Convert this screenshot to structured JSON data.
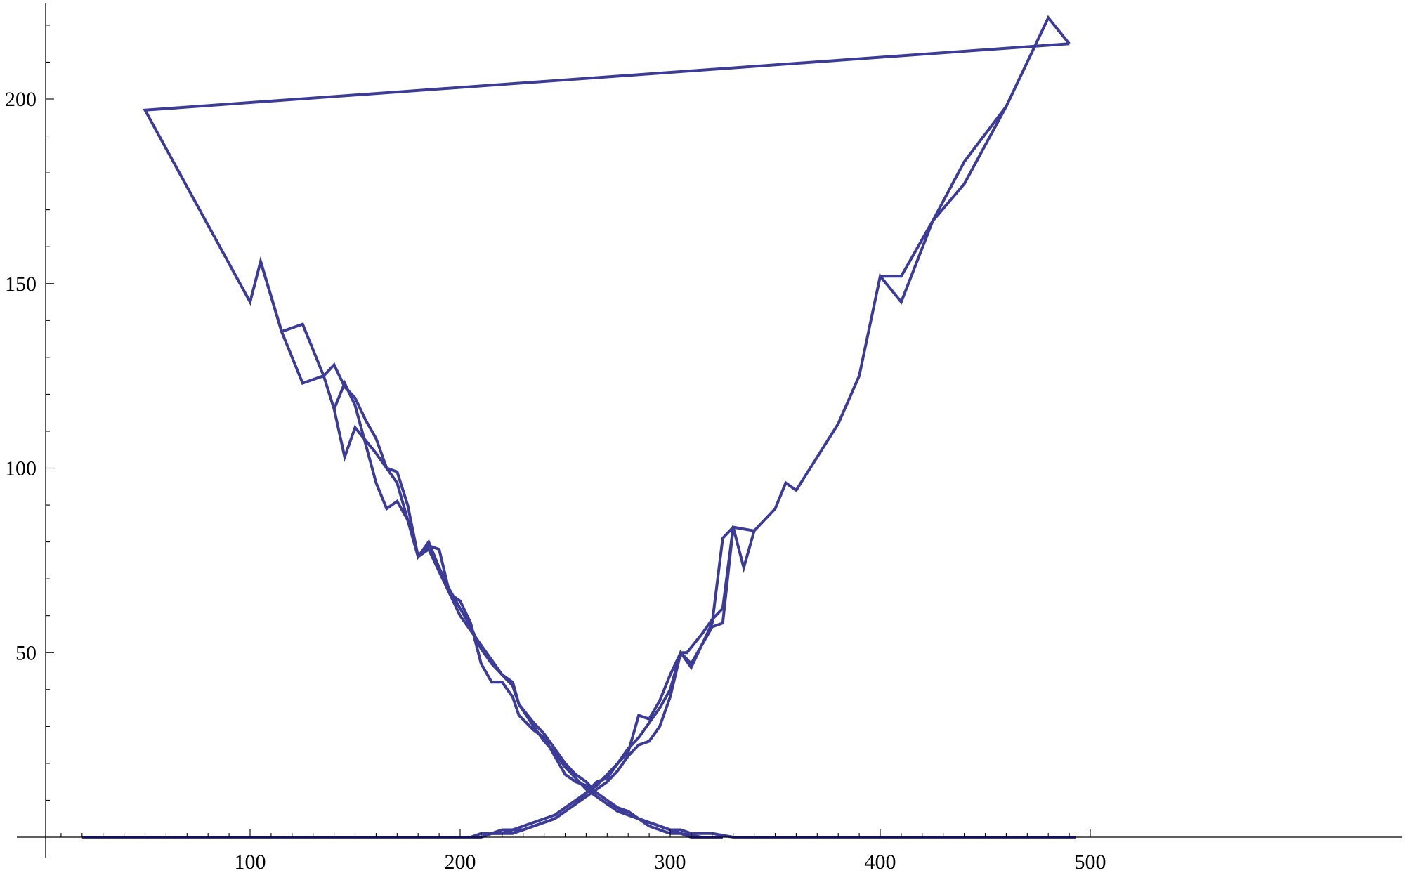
{
  "chart_data": {
    "type": "line",
    "title": "",
    "xlabel": "",
    "ylabel": "",
    "xlim": [
      0,
      500
    ],
    "ylim": [
      0,
      225
    ],
    "x_major_ticks": [
      100,
      200,
      300,
      400,
      500
    ],
    "x_minor_step": 10,
    "y_major_ticks": [
      50,
      100,
      150,
      200
    ],
    "y_minor_step": 10,
    "grid": false,
    "legend": "none",
    "line_color": "#3c3c96",
    "series": [
      {
        "points": [
          [
            20,
            0
          ],
          [
            200,
            0
          ],
          [
            205,
            0
          ],
          [
            210,
            1
          ],
          [
            215,
            1
          ],
          [
            220,
            2
          ],
          [
            225,
            2
          ],
          [
            230,
            3
          ],
          [
            235,
            4
          ],
          [
            240,
            5
          ],
          [
            245,
            6
          ],
          [
            250,
            8
          ],
          [
            255,
            10
          ],
          [
            260,
            12
          ],
          [
            265,
            14
          ],
          [
            270,
            17
          ],
          [
            275,
            20
          ],
          [
            280,
            24
          ],
          [
            285,
            27
          ],
          [
            290,
            31
          ],
          [
            295,
            35
          ],
          [
            300,
            40
          ],
          [
            305,
            50
          ],
          [
            310,
            46
          ],
          [
            315,
            52
          ],
          [
            320,
            57
          ],
          [
            325,
            58
          ],
          [
            330,
            84
          ],
          [
            335,
            73
          ],
          [
            340,
            83
          ],
          [
            350,
            89
          ],
          [
            355,
            96
          ],
          [
            360,
            94
          ],
          [
            380,
            112
          ],
          [
            390,
            125
          ],
          [
            400,
            152
          ],
          [
            410,
            145
          ],
          [
            425,
            167
          ],
          [
            440,
            177
          ],
          [
            460,
            198
          ],
          [
            480,
            222
          ],
          [
            490,
            215
          ]
        ]
      },
      {
        "points": [
          [
            490,
            215
          ],
          [
            50,
            197
          ],
          [
            100,
            145
          ],
          [
            105,
            156
          ],
          [
            115,
            137
          ],
          [
            125,
            123
          ],
          [
            135,
            125
          ],
          [
            140,
            116
          ],
          [
            145,
            103
          ],
          [
            150,
            111
          ],
          [
            160,
            104
          ],
          [
            170,
            96
          ],
          [
            175,
            86
          ],
          [
            180,
            76
          ],
          [
            185,
            78
          ],
          [
            190,
            72
          ],
          [
            195,
            66
          ],
          [
            200,
            64
          ],
          [
            205,
            58
          ],
          [
            210,
            47
          ],
          [
            215,
            42
          ],
          [
            220,
            42
          ],
          [
            225,
            38
          ],
          [
            228,
            33
          ],
          [
            235,
            29
          ],
          [
            240,
            27
          ],
          [
            245,
            22
          ],
          [
            250,
            17
          ],
          [
            255,
            15
          ],
          [
            260,
            14
          ],
          [
            265,
            11
          ],
          [
            270,
            9
          ],
          [
            275,
            7
          ],
          [
            280,
            6
          ],
          [
            285,
            5
          ],
          [
            290,
            4
          ],
          [
            295,
            3
          ],
          [
            300,
            2
          ],
          [
            305,
            2
          ],
          [
            310,
            1
          ],
          [
            320,
            1
          ],
          [
            330,
            0
          ],
          [
            493,
            0
          ]
        ]
      },
      {
        "points": [
          [
            105,
            156
          ],
          [
            115,
            137
          ],
          [
            125,
            139
          ],
          [
            135,
            125
          ],
          [
            140,
            128
          ],
          [
            145,
            122
          ],
          [
            150,
            119
          ],
          [
            155,
            113
          ],
          [
            160,
            108
          ],
          [
            165,
            100
          ],
          [
            170,
            99
          ],
          [
            175,
            90
          ],
          [
            180,
            76
          ],
          [
            185,
            80
          ],
          [
            190,
            73
          ],
          [
            195,
            67
          ],
          [
            200,
            62
          ],
          [
            205,
            57
          ],
          [
            210,
            51
          ],
          [
            215,
            47
          ],
          [
            220,
            44
          ],
          [
            225,
            41
          ],
          [
            228,
            36
          ],
          [
            235,
            31
          ],
          [
            240,
            28
          ],
          [
            245,
            24
          ],
          [
            250,
            20
          ],
          [
            255,
            17
          ],
          [
            260,
            15
          ],
          [
            265,
            12
          ],
          [
            270,
            10
          ],
          [
            275,
            8
          ],
          [
            280,
            7
          ],
          [
            285,
            5
          ],
          [
            290,
            4
          ],
          [
            295,
            3
          ],
          [
            300,
            2
          ],
          [
            305,
            1
          ],
          [
            310,
            0
          ],
          [
            325,
            0
          ]
        ]
      },
      {
        "points": [
          [
            140,
            116
          ],
          [
            145,
            123
          ],
          [
            150,
            117
          ],
          [
            160,
            96
          ],
          [
            165,
            89
          ],
          [
            170,
            91
          ],
          [
            175,
            86
          ],
          [
            180,
            76
          ],
          [
            185,
            79
          ],
          [
            190,
            78
          ],
          [
            195,
            66
          ],
          [
            200,
            60
          ],
          [
            205,
            56
          ],
          [
            210,
            52
          ],
          [
            215,
            48
          ],
          [
            220,
            44
          ],
          [
            225,
            42
          ],
          [
            228,
            36
          ],
          [
            235,
            30
          ],
          [
            240,
            26
          ],
          [
            245,
            23
          ],
          [
            250,
            19
          ],
          [
            255,
            16
          ],
          [
            260,
            13
          ],
          [
            265,
            11
          ],
          [
            270,
            9
          ],
          [
            275,
            8
          ],
          [
            280,
            6
          ],
          [
            285,
            5
          ],
          [
            290,
            3
          ],
          [
            295,
            2
          ],
          [
            300,
            1
          ],
          [
            305,
            1
          ],
          [
            315,
            0
          ],
          [
            325,
            0
          ]
        ]
      },
      {
        "points": [
          [
            205,
            0
          ],
          [
            210,
            0
          ],
          [
            215,
            1
          ],
          [
            220,
            1
          ],
          [
            225,
            1
          ],
          [
            230,
            2
          ],
          [
            235,
            3
          ],
          [
            240,
            4
          ],
          [
            245,
            5
          ],
          [
            250,
            7
          ],
          [
            255,
            9
          ],
          [
            260,
            11
          ],
          [
            265,
            13
          ],
          [
            270,
            15
          ],
          [
            275,
            18
          ],
          [
            280,
            22
          ],
          [
            285,
            25
          ],
          [
            290,
            26
          ],
          [
            295,
            30
          ],
          [
            300,
            38
          ],
          [
            305,
            50
          ],
          [
            308,
            50
          ],
          [
            315,
            55
          ],
          [
            320,
            59
          ],
          [
            325,
            62
          ],
          [
            330,
            84
          ],
          [
            340,
            83
          ]
        ]
      },
      {
        "points": [
          [
            210,
            1
          ],
          [
            220,
            1
          ],
          [
            225,
            2
          ],
          [
            230,
            2
          ],
          [
            235,
            3
          ],
          [
            240,
            4
          ],
          [
            245,
            5
          ],
          [
            250,
            7
          ],
          [
            255,
            9
          ],
          [
            260,
            12
          ],
          [
            265,
            15
          ],
          [
            270,
            16
          ],
          [
            275,
            20
          ],
          [
            280,
            23
          ],
          [
            285,
            33
          ],
          [
            290,
            32
          ],
          [
            295,
            37
          ],
          [
            300,
            44
          ],
          [
            305,
            50
          ],
          [
            310,
            47
          ],
          [
            315,
            52
          ],
          [
            320,
            58
          ],
          [
            325,
            81
          ],
          [
            330,
            84
          ]
        ]
      },
      {
        "points": [
          [
            400,
            152
          ],
          [
            410,
            152
          ],
          [
            425,
            167
          ],
          [
            440,
            183
          ],
          [
            460,
            198
          ]
        ]
      }
    ]
  }
}
